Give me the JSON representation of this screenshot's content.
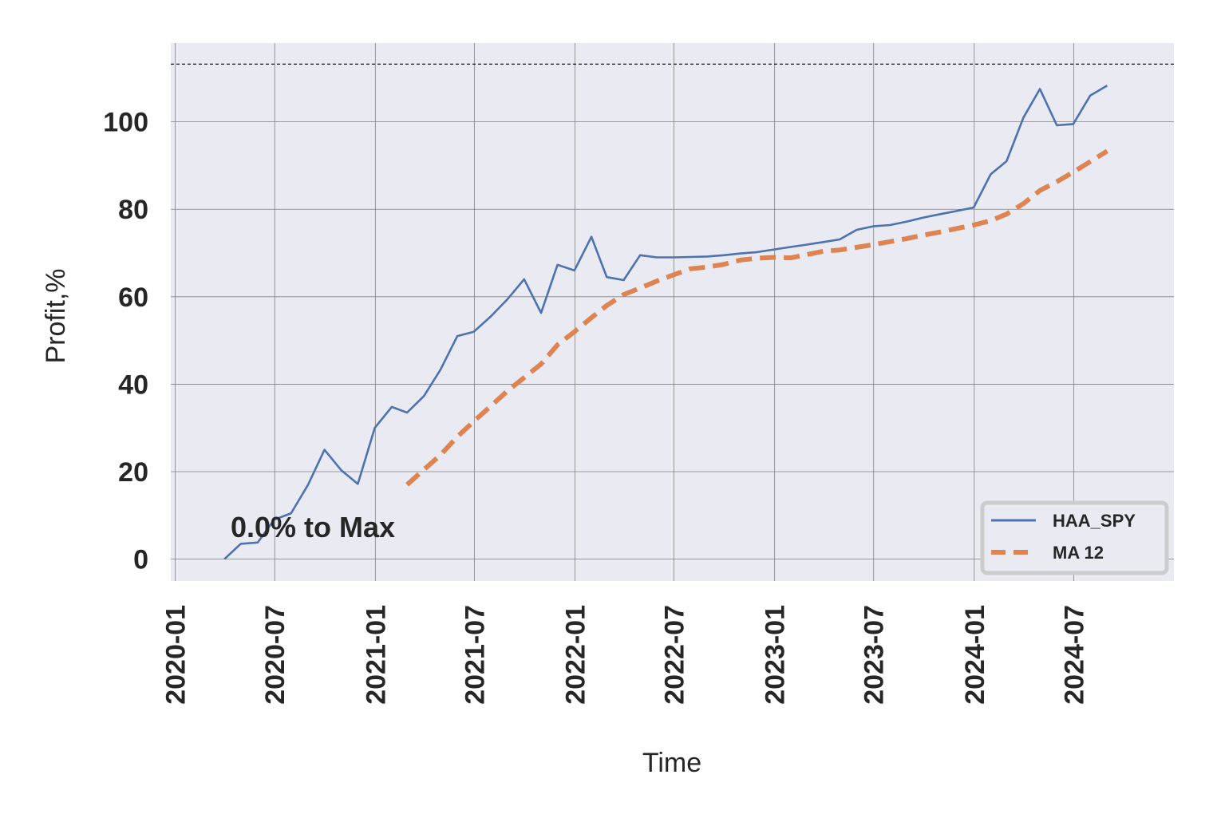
{
  "chart_data": {
    "type": "line",
    "xlabel": "Time",
    "ylabel": "Profit,%",
    "annotation": "0.0% to Max",
    "x_ticks": [
      "2020-01",
      "2020-07",
      "2021-01",
      "2021-07",
      "2022-01",
      "2022-07",
      "2023-01",
      "2023-07",
      "2024-01",
      "2024-07"
    ],
    "y_ticks": [
      0,
      20,
      40,
      60,
      80,
      100
    ],
    "xlim": [
      "2019-12-24",
      "2024-12-31"
    ],
    "ylim": [
      -5,
      118
    ],
    "max_line": 113.2,
    "grid": true,
    "legend_position": "lower-right",
    "colors": {
      "background": "#eaeaf2",
      "grid": "#808080",
      "haa_spy": "#4c72b0",
      "ma12": "#dd8452"
    },
    "series": [
      {
        "name": "HAA_SPY",
        "style": "solid",
        "x": [
          "2020-03-31",
          "2020-04-30",
          "2020-05-31",
          "2020-06-30",
          "2020-07-31",
          "2020-08-31",
          "2020-09-30",
          "2020-10-31",
          "2020-11-30",
          "2020-12-31",
          "2021-01-31",
          "2021-02-28",
          "2021-03-31",
          "2021-04-30",
          "2021-05-31",
          "2021-06-30",
          "2021-07-31",
          "2021-08-31",
          "2021-09-30",
          "2021-10-31",
          "2021-11-30",
          "2021-12-31",
          "2022-01-31",
          "2022-02-28",
          "2022-03-31",
          "2022-04-30",
          "2022-05-31",
          "2022-06-30",
          "2022-07-31",
          "2022-08-31",
          "2022-09-30",
          "2022-10-31",
          "2022-11-30",
          "2022-12-31",
          "2023-01-31",
          "2023-02-28",
          "2023-03-31",
          "2023-04-30",
          "2023-05-31",
          "2023-06-30",
          "2023-07-31",
          "2023-08-31",
          "2023-09-30",
          "2023-10-31",
          "2023-11-30",
          "2023-12-31",
          "2024-01-31",
          "2024-02-29",
          "2024-03-31",
          "2024-04-30",
          "2024-05-31",
          "2024-06-30",
          "2024-07-31",
          "2024-08-31"
        ],
        "values": [
          0.0,
          3.5,
          3.8,
          9.0,
          10.5,
          17.0,
          25.0,
          20.3,
          17.2,
          30.0,
          34.8,
          33.5,
          37.3,
          43.3,
          51.0,
          52.0,
          55.5,
          59.5,
          64.0,
          56.3,
          67.3,
          66.0,
          73.7,
          64.5,
          63.8,
          69.5,
          69.0,
          69.0,
          69.1,
          69.2,
          69.5,
          69.9,
          70.2,
          70.8,
          71.4,
          71.9,
          72.5,
          73.1,
          75.3,
          76.1,
          76.4,
          77.2,
          78.1,
          78.9,
          79.6,
          80.4,
          88.0,
          91.0,
          101.0,
          107.5,
          99.2,
          99.5,
          106.0,
          108.3
        ]
      },
      {
        "name": "MA 12",
        "style": "dashed",
        "x": [
          "2021-02-28",
          "2021-03-31",
          "2021-04-30",
          "2021-05-31",
          "2021-06-30",
          "2021-07-31",
          "2021-08-31",
          "2021-09-30",
          "2021-10-31",
          "2021-11-30",
          "2021-12-31",
          "2022-01-31",
          "2022-02-28",
          "2022-03-31",
          "2022-04-30",
          "2022-05-31",
          "2022-06-30",
          "2022-07-31",
          "2022-08-31",
          "2022-09-30",
          "2022-10-31",
          "2022-11-30",
          "2022-12-31",
          "2023-01-31",
          "2023-02-28",
          "2023-03-31",
          "2023-04-30",
          "2023-05-31",
          "2023-06-30",
          "2023-07-31",
          "2023-08-31",
          "2023-09-30",
          "2023-10-31",
          "2023-11-30",
          "2023-12-31",
          "2024-01-31",
          "2024-02-29",
          "2024-03-31",
          "2024-04-30",
          "2024-05-31",
          "2024-06-30",
          "2024-07-31",
          "2024-08-31"
        ],
        "values": [
          17.0,
          20.5,
          23.8,
          28.0,
          31.5,
          35.0,
          38.5,
          41.5,
          44.6,
          49.0,
          52.0,
          55.2,
          58.0,
          60.5,
          62.0,
          63.6,
          65.0,
          66.4,
          66.8,
          67.4,
          68.4,
          68.8,
          69.0,
          68.9,
          69.6,
          70.4,
          70.7,
          71.3,
          71.9,
          72.6,
          73.3,
          74.1,
          74.8,
          75.6,
          76.4,
          77.4,
          78.9,
          81.3,
          84.3,
          86.3,
          88.5,
          90.9,
          93.3
        ]
      }
    ]
  }
}
